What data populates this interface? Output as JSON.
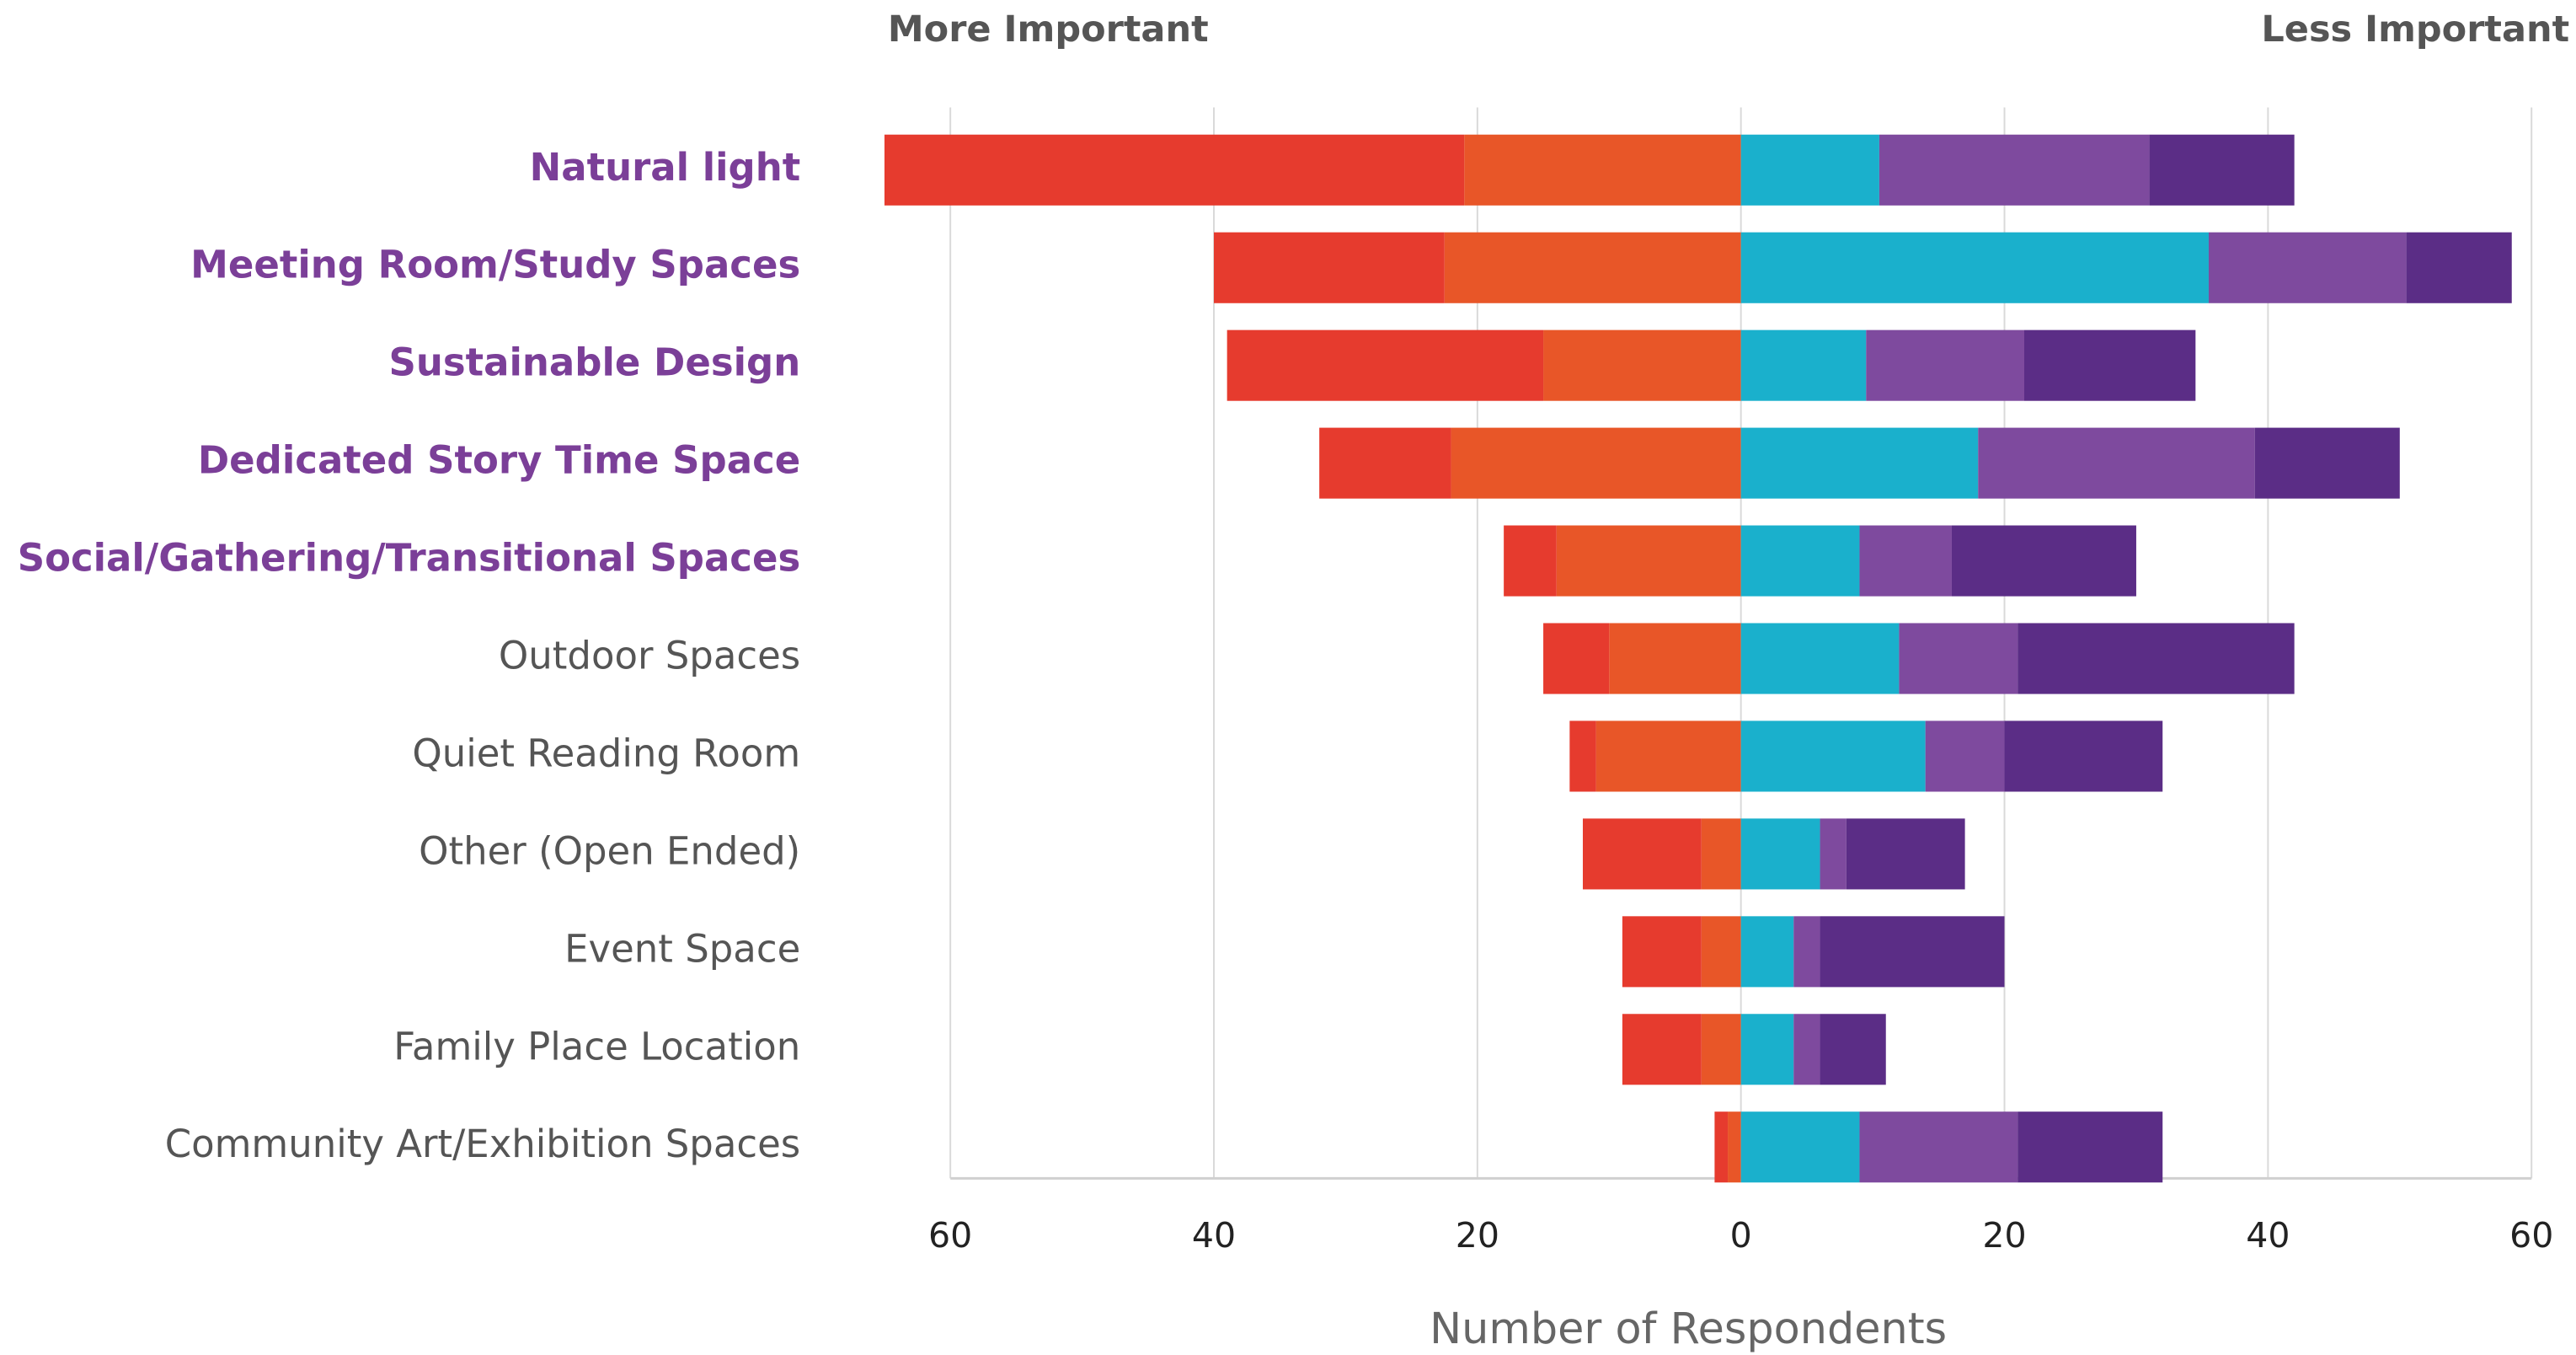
{
  "chart_data": {
    "type": "diverging_stacked_bar",
    "annotations": [
      "More Important",
      "Less Important"
    ],
    "xlabel": "Number of Respondents",
    "categories": [
      "Natural light",
      "Meeting Room/Study Spaces",
      "Sustainable Design",
      "Dedicated Story Time Space",
      "Social/Gathering/Transitional Spaces",
      "Outdoor Spaces",
      "Quiet Reading Room",
      "Other (Open Ended)",
      "Event Space",
      "Family Place Location",
      "Community Art/Exhibition Spaces"
    ],
    "label_colors": [
      "#7b3f98",
      "#7b3f98",
      "#7b3f98",
      "#7b3f98",
      "#7b3f98",
      "#555555",
      "#555555",
      "#555555",
      "#555555",
      "#555555",
      "#555555"
    ],
    "series": [
      {
        "color": "#e85628",
        "values": [
          -21,
          -22.5,
          -15,
          -22,
          -14,
          -10,
          -11,
          -3,
          -3,
          -3,
          -1
        ]
      },
      {
        "color": "#e63b2e",
        "values": [
          -44,
          -17.5,
          -24,
          -10,
          -4,
          -5,
          -2,
          -9,
          -6,
          -6,
          -1
        ]
      },
      {
        "color": "#1ab0cc",
        "values": [
          10.5,
          35.5,
          9.5,
          18,
          9,
          12,
          14,
          6,
          4,
          4,
          9
        ]
      },
      {
        "color": "#7e4a9e",
        "values": [
          20.5,
          15,
          12,
          21,
          7,
          9,
          6,
          2,
          2,
          2,
          12
        ]
      },
      {
        "color": "#5b2d86",
        "values": [
          11,
          8,
          13,
          11,
          14,
          21,
          12,
          9,
          14,
          5,
          11
        ]
      }
    ],
    "xlim": [
      -60,
      60
    ],
    "xticks": [
      {
        "value": -60,
        "label": "60"
      },
      {
        "value": -40,
        "label": "40"
      },
      {
        "value": -20,
        "label": "20"
      },
      0,
      20,
      40,
      60
    ],
    "grid": true
  }
}
